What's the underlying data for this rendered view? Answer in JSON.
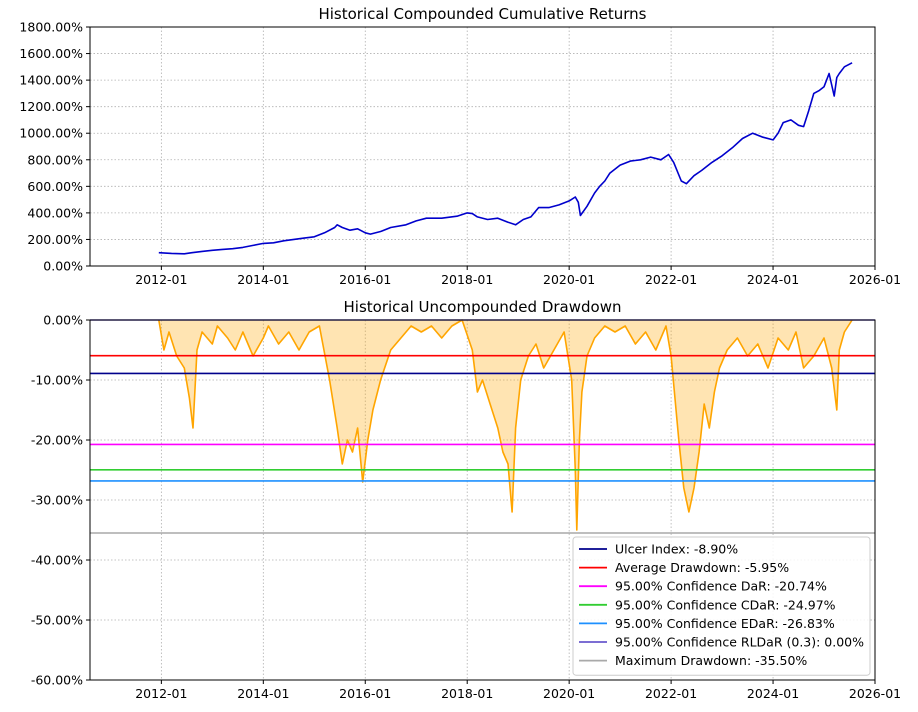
{
  "chart_data": [
    {
      "type": "line",
      "title": "Historical Compounded Cumulative Returns",
      "y_ticks": [
        "0.00%",
        "200.00%",
        "400.00%",
        "600.00%",
        "800.00%",
        "1000.00%",
        "1200.00%",
        "1400.00%",
        "1600.00%",
        "1800.00%"
      ],
      "x_ticks": [
        "2012-01",
        "2014-01",
        "2016-01",
        "2018-01",
        "2020-01",
        "2022-01",
        "2024-01",
        "2026-01"
      ],
      "xlim": [
        2010.6,
        2026.0
      ],
      "ylim": [
        0,
        1800
      ],
      "grid": true,
      "series": [
        {
          "color": "#0000cc",
          "x": [
            2011.95,
            2012.2,
            2012.45,
            2012.6,
            2012.8,
            2013.0,
            2013.2,
            2013.4,
            2013.6,
            2013.8,
            2014.0,
            2014.2,
            2014.4,
            2014.6,
            2014.8,
            2015.0,
            2015.2,
            2015.4,
            2015.45,
            2015.55,
            2015.7,
            2015.85,
            2016.0,
            2016.1,
            2016.3,
            2016.5,
            2016.8,
            2017.0,
            2017.2,
            2017.5,
            2017.8,
            2018.0,
            2018.1,
            2018.2,
            2018.4,
            2018.6,
            2018.8,
            2018.95,
            2019.1,
            2019.25,
            2019.4,
            2019.6,
            2019.8,
            2020.0,
            2020.12,
            2020.18,
            2020.22,
            2020.35,
            2020.5,
            2020.6,
            2020.7,
            2020.8,
            2021.0,
            2021.2,
            2021.4,
            2021.6,
            2021.8,
            2021.95,
            2022.05,
            2022.2,
            2022.3,
            2022.45,
            2022.6,
            2022.8,
            2023.0,
            2023.2,
            2023.4,
            2023.6,
            2023.8,
            2024.0,
            2024.1,
            2024.2,
            2024.35,
            2024.5,
            2024.6,
            2024.7,
            2024.8,
            2024.9,
            2025.0,
            2025.1,
            2025.2,
            2025.25,
            2025.3,
            2025.4,
            2025.55
          ],
          "y": [
            100,
            95,
            92,
            100,
            110,
            118,
            125,
            130,
            140,
            155,
            170,
            175,
            190,
            200,
            210,
            220,
            250,
            290,
            310,
            290,
            270,
            280,
            250,
            240,
            260,
            290,
            310,
            340,
            360,
            360,
            375,
            400,
            395,
            370,
            350,
            360,
            330,
            310,
            350,
            370,
            440,
            440,
            460,
            490,
            520,
            480,
            380,
            450,
            550,
            600,
            640,
            700,
            760,
            790,
            800,
            820,
            800,
            840,
            780,
            640,
            620,
            680,
            720,
            780,
            830,
            890,
            960,
            1000,
            970,
            950,
            1000,
            1080,
            1100,
            1060,
            1050,
            1170,
            1300,
            1320,
            1350,
            1450,
            1280,
            1420,
            1450,
            1500,
            1530
          ]
        }
      ]
    },
    {
      "type": "area",
      "title": "Historical Uncompounded Drawdown",
      "y_ticks": [
        "0.00%",
        "-10.00%",
        "-20.00%",
        "-30.00%",
        "-40.00%",
        "-50.00%",
        "-60.00%"
      ],
      "x_ticks": [
        "2012-01",
        "2014-01",
        "2016-01",
        "2018-01",
        "2020-01",
        "2022-01",
        "2024-01",
        "2026-01"
      ],
      "xlim": [
        2010.6,
        2026.0
      ],
      "ylim": [
        -60,
        0
      ],
      "grid": true,
      "drawdown": {
        "color": "#ffa500",
        "fill": "#ffa500",
        "x": [
          2011.95,
          2012.05,
          2012.15,
          2012.3,
          2012.45,
          2012.55,
          2012.62,
          2012.7,
          2012.8,
          2013.0,
          2013.1,
          2013.3,
          2013.45,
          2013.6,
          2013.8,
          2014.0,
          2014.1,
          2014.3,
          2014.5,
          2014.7,
          2014.9,
          2015.1,
          2015.3,
          2015.45,
          2015.55,
          2015.65,
          2015.75,
          2015.85,
          2015.95,
          2016.05,
          2016.15,
          2016.3,
          2016.5,
          2016.7,
          2016.9,
          2017.1,
          2017.3,
          2017.5,
          2017.7,
          2017.9,
          2018.1,
          2018.2,
          2018.3,
          2018.45,
          2018.6,
          2018.7,
          2018.8,
          2018.88,
          2018.95,
          2019.05,
          2019.2,
          2019.35,
          2019.5,
          2019.7,
          2019.9,
          2020.05,
          2020.12,
          2020.15,
          2020.2,
          2020.25,
          2020.35,
          2020.5,
          2020.7,
          2020.9,
          2021.1,
          2021.3,
          2021.5,
          2021.7,
          2021.9,
          2022.0,
          2022.15,
          2022.25,
          2022.35,
          2022.45,
          2022.55,
          2022.65,
          2022.75,
          2022.85,
          2022.95,
          2023.1,
          2023.3,
          2023.5,
          2023.7,
          2023.9,
          2024.1,
          2024.3,
          2024.45,
          2024.6,
          2024.8,
          2025.0,
          2025.15,
          2025.25,
          2025.3,
          2025.4,
          2025.55
        ],
        "y": [
          0,
          -5,
          -2,
          -6,
          -8,
          -13,
          -18,
          -5,
          -2,
          -4,
          -1,
          -3,
          -5,
          -2,
          -6,
          -3,
          -1,
          -4,
          -2,
          -5,
          -2,
          -1,
          -10,
          -18,
          -24,
          -20,
          -22,
          -18,
          -27,
          -20,
          -15,
          -10,
          -5,
          -3,
          -1,
          -2,
          -1,
          -3,
          -1,
          0,
          -5,
          -12,
          -10,
          -14,
          -18,
          -22,
          -24,
          -32,
          -18,
          -10,
          -6,
          -4,
          -8,
          -5,
          -2,
          -10,
          -25,
          -35,
          -20,
          -12,
          -6,
          -3,
          -1,
          -2,
          -1,
          -4,
          -2,
          -5,
          -1,
          -6,
          -20,
          -28,
          -32,
          -28,
          -22,
          -14,
          -18,
          -12,
          -8,
          -5,
          -3,
          -6,
          -4,
          -8,
          -3,
          -5,
          -2,
          -8,
          -6,
          -3,
          -8,
          -15,
          -5,
          -2,
          0
        ]
      },
      "risk_lines": [
        {
          "label": "Ulcer Index: -8.90%",
          "value": -8.9,
          "color": "#00008b"
        },
        {
          "label": "Average Drawdown: -5.95%",
          "value": -5.95,
          "color": "#ff0000"
        },
        {
          "label": "95.00% Confidence DaR: -20.74%",
          "value": -20.74,
          "color": "#ff00ff"
        },
        {
          "label": "95.00% Confidence CDaR: -24.97%",
          "value": -24.97,
          "color": "#32cd32"
        },
        {
          "label": "95.00% Confidence EDaR: -26.83%",
          "value": -26.83,
          "color": "#1e90ff"
        },
        {
          "label": "95.00% Confidence RLDaR (0.3): 0.00%",
          "value": 0.0,
          "color": "#6a5acd"
        },
        {
          "label": "Maximum Drawdown: -35.50%",
          "value": -35.5,
          "color": "#a9a9a9"
        }
      ],
      "legend": "lower-right"
    }
  ]
}
